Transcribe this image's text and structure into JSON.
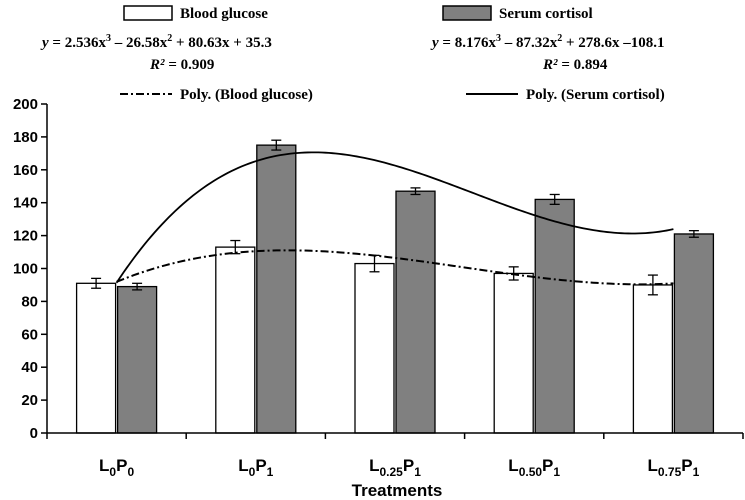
{
  "chart_data": {
    "type": "bar",
    "xlabel": "Treatments",
    "ylabel": "",
    "ylim": [
      0,
      200
    ],
    "ytick_step": 20,
    "grid": false,
    "legend_position": "top",
    "categories": [
      {
        "base": "L",
        "sub1": "0",
        "mid": "P",
        "sub2": "0"
      },
      {
        "base": "L",
        "sub1": "0",
        "mid": "P",
        "sub2": "1"
      },
      {
        "base": "L",
        "sub1": "0.25",
        "mid": "P",
        "sub2": "1"
      },
      {
        "base": "L",
        "sub1": "0.50",
        "mid": "P",
        "sub2": "1"
      },
      {
        "base": "L",
        "sub1": "0.75",
        "mid": "P",
        "sub2": "1"
      }
    ],
    "series": [
      {
        "name": "Blood glucose",
        "color": "#ffffff",
        "values": [
          91,
          113,
          103,
          97,
          90
        ],
        "errors": [
          3,
          4,
          5,
          4,
          6
        ]
      },
      {
        "name": "Serum cortisol",
        "color": "#808080",
        "values": [
          89,
          175,
          147,
          142,
          121
        ],
        "errors": [
          2,
          3,
          2,
          3,
          2
        ]
      }
    ],
    "trendlines": [
      {
        "name": "Poly. (Blood glucose)",
        "style": "dash-dot",
        "coefficients": [
          2.536,
          -26.58,
          80.63,
          35.3
        ],
        "equation": {
          "pre": "y",
          "a": " = 2.536x",
          "b": " – 26.58x",
          "c": " + 80.63x + 35.3"
        },
        "r2": {
          "label": "R² = ",
          "value": "0.909"
        }
      },
      {
        "name": "Poly. (Serum cortisol)",
        "style": "solid",
        "coefficients": [
          8.176,
          -87.32,
          278.6,
          -108.1
        ],
        "equation": {
          "pre": "y",
          "a": " = 8.176x",
          "b": " – 87.32x",
          "c": " + 278.6x –108.1"
        },
        "r2": {
          "label": "R² = ",
          "value": "0.894"
        }
      }
    ]
  }
}
